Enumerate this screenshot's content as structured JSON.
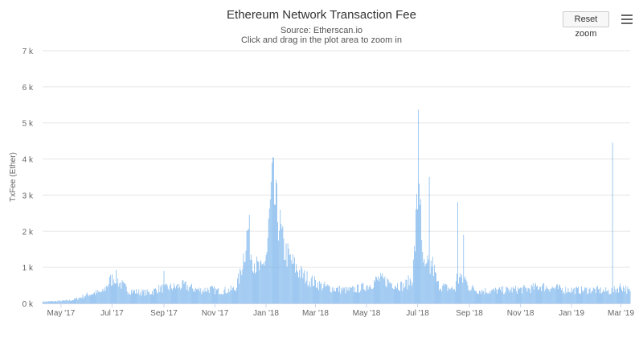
{
  "header": {
    "title": "Ethereum Network Transaction Fee",
    "subtitle_source": "Source: Etherscan.io",
    "subtitle_hint": "Click and drag in the plot area to zoom in"
  },
  "toolbar": {
    "reset_zoom_label": "Reset zoom",
    "menu_icon": "hamburger-menu-icon"
  },
  "colors": {
    "bar": "#7cb5ec",
    "grid": "#e6e6e6",
    "axis_text": "#666666"
  },
  "chart_data": {
    "type": "bar",
    "title": "Ethereum Network Transaction Fee",
    "subtitle": "Source: Etherscan.io",
    "ylabel": "TxFee (Ether)",
    "xlabel": "",
    "ylim": [
      0,
      7000
    ],
    "grid": true,
    "legend": "none",
    "x_range": [
      "2017-04-09",
      "2019-03-12"
    ],
    "y_ticks": [
      {
        "value": 0,
        "label": "0 k"
      },
      {
        "value": 1000,
        "label": "1 k"
      },
      {
        "value": 2000,
        "label": "2 k"
      },
      {
        "value": 3000,
        "label": "3 k"
      },
      {
        "value": 4000,
        "label": "4 k"
      },
      {
        "value": 5000,
        "label": "5 k"
      },
      {
        "value": 6000,
        "label": "6 k"
      },
      {
        "value": 7000,
        "label": "7 k"
      }
    ],
    "x_ticks": [
      {
        "date": "2017-05-01",
        "label": "May '17"
      },
      {
        "date": "2017-07-01",
        "label": "Jul '17"
      },
      {
        "date": "2017-09-01",
        "label": "Sep '17"
      },
      {
        "date": "2017-11-01",
        "label": "Nov '17"
      },
      {
        "date": "2018-01-01",
        "label": "Jan '18"
      },
      {
        "date": "2018-03-01",
        "label": "Mar '18"
      },
      {
        "date": "2018-05-01",
        "label": "May '18"
      },
      {
        "date": "2018-07-01",
        "label": "Jul '18"
      },
      {
        "date": "2018-09-01",
        "label": "Sep '18"
      },
      {
        "date": "2018-11-01",
        "label": "Nov '18"
      },
      {
        "date": "2019-01-01",
        "label": "Jan '19"
      },
      {
        "date": "2019-03-01",
        "label": "Mar '19"
      }
    ],
    "points": [
      [
        "2017-04-09",
        50
      ],
      [
        "2017-04-23",
        60
      ],
      [
        "2017-05-07",
        80
      ],
      [
        "2017-05-15",
        100
      ],
      [
        "2017-05-25",
        180
      ],
      [
        "2017-06-01",
        250
      ],
      [
        "2017-06-10",
        300
      ],
      [
        "2017-06-20",
        330
      ],
      [
        "2017-06-28",
        650
      ],
      [
        "2017-07-05",
        780
      ],
      [
        "2017-07-10",
        600
      ],
      [
        "2017-07-20",
        380
      ],
      [
        "2017-08-01",
        330
      ],
      [
        "2017-08-15",
        310
      ],
      [
        "2017-08-25",
        420
      ],
      [
        "2017-09-01",
        900
      ],
      [
        "2017-09-05",
        450
      ],
      [
        "2017-09-15",
        480
      ],
      [
        "2017-09-25",
        520
      ],
      [
        "2017-10-05",
        440
      ],
      [
        "2017-10-15",
        380
      ],
      [
        "2017-10-25",
        420
      ],
      [
        "2017-11-05",
        360
      ],
      [
        "2017-11-15",
        380
      ],
      [
        "2017-11-25",
        420
      ],
      [
        "2017-12-01",
        800
      ],
      [
        "2017-12-08",
        1800
      ],
      [
        "2017-12-11",
        2200
      ],
      [
        "2017-12-14",
        1500
      ],
      [
        "2017-12-20",
        1100
      ],
      [
        "2017-12-27",
        950
      ],
      [
        "2018-01-02",
        1500
      ],
      [
        "2018-01-05",
        2500
      ],
      [
        "2018-01-07",
        3100
      ],
      [
        "2018-01-09",
        3500
      ],
      [
        "2018-01-11",
        3000
      ],
      [
        "2018-01-16",
        2500
      ],
      [
        "2018-01-22",
        1600
      ],
      [
        "2018-01-29",
        1300
      ],
      [
        "2018-02-05",
        1050
      ],
      [
        "2018-02-15",
        800
      ],
      [
        "2018-02-25",
        650
      ],
      [
        "2018-03-10",
        500
      ],
      [
        "2018-03-25",
        420
      ],
      [
        "2018-04-10",
        380
      ],
      [
        "2018-04-25",
        450
      ],
      [
        "2018-05-05",
        550
      ],
      [
        "2018-05-15",
        700
      ],
      [
        "2018-05-25",
        650
      ],
      [
        "2018-06-05",
        550
      ],
      [
        "2018-06-15",
        500
      ],
      [
        "2018-06-25",
        750
      ],
      [
        "2018-06-28",
        1800
      ],
      [
        "2018-07-01",
        3100
      ],
      [
        "2018-07-02",
        5800
      ],
      [
        "2018-07-03",
        4000
      ],
      [
        "2018-07-04",
        3400
      ],
      [
        "2018-07-06",
        1500
      ],
      [
        "2018-07-10",
        900
      ],
      [
        "2018-07-15",
        3500
      ],
      [
        "2018-07-18",
        1200
      ],
      [
        "2018-07-25",
        550
      ],
      [
        "2018-08-05",
        450
      ],
      [
        "2018-08-15",
        420
      ],
      [
        "2018-08-18",
        2800
      ],
      [
        "2018-08-20",
        900
      ],
      [
        "2018-08-25",
        1900
      ],
      [
        "2018-08-30",
        500
      ],
      [
        "2018-09-10",
        380
      ],
      [
        "2018-09-25",
        360
      ],
      [
        "2018-10-10",
        380
      ],
      [
        "2018-10-25",
        400
      ],
      [
        "2018-11-10",
        420
      ],
      [
        "2018-11-25",
        500
      ],
      [
        "2018-12-10",
        450
      ],
      [
        "2018-12-25",
        400
      ],
      [
        "2019-01-10",
        380
      ],
      [
        "2019-01-25",
        400
      ],
      [
        "2019-02-10",
        360
      ],
      [
        "2019-02-17",
        350
      ],
      [
        "2019-02-19",
        4450
      ],
      [
        "2019-02-21",
        380
      ],
      [
        "2019-03-01",
        500
      ],
      [
        "2019-03-06",
        450
      ],
      [
        "2019-03-12",
        320
      ]
    ]
  }
}
